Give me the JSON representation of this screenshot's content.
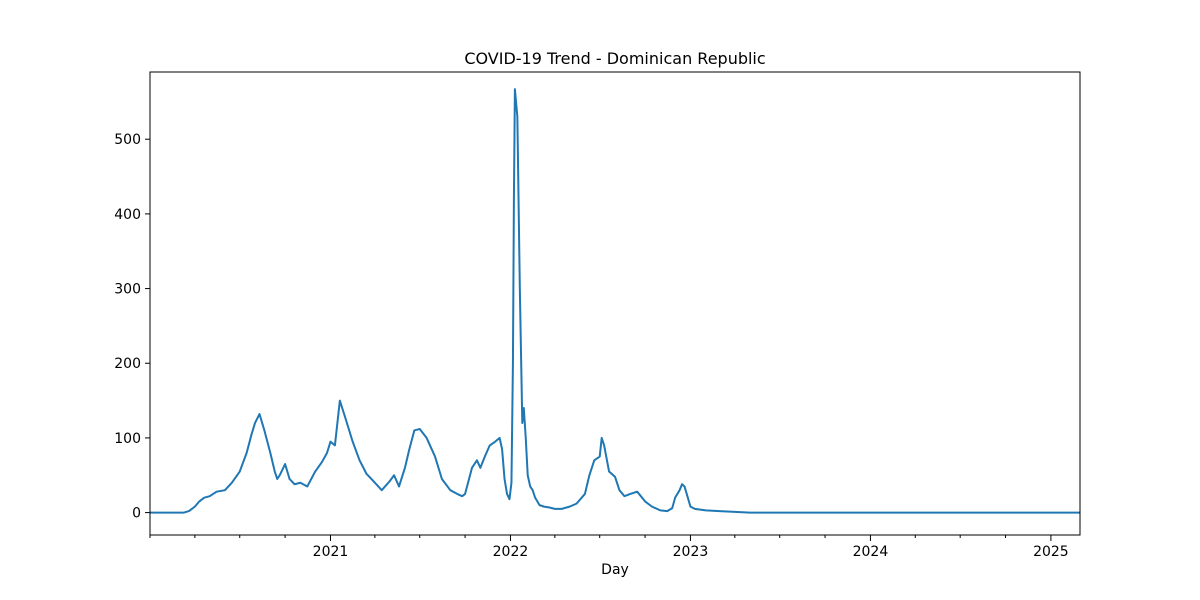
{
  "chart_data": {
    "type": "line",
    "title": "COVID-19 Trend - Dominican Republic",
    "xlabel": "Day",
    "ylabel": "",
    "x_type": "date",
    "xlim": [
      "2020-01-01",
      "2025-03-01"
    ],
    "ylim": [
      -30,
      590
    ],
    "yticks": [
      0,
      100,
      200,
      300,
      400,
      500
    ],
    "xticks_major": [
      {
        "date": "2021-01-01",
        "label": "2021"
      },
      {
        "date": "2022-01-01",
        "label": "2022"
      },
      {
        "date": "2023-01-01",
        "label": "2023"
      },
      {
        "date": "2024-01-01",
        "label": "2024"
      },
      {
        "date": "2025-01-01",
        "label": "2025"
      }
    ],
    "grid": false,
    "legend": "none",
    "line_color": "#1f77b4",
    "series": [
      {
        "x": [
          "2020-01-01",
          "2020-03-10",
          "2020-03-20",
          "2020-04-01",
          "2020-04-10",
          "2020-04-20",
          "2020-05-01",
          "2020-05-15",
          "2020-06-01",
          "2020-06-15",
          "2020-07-01",
          "2020-07-15",
          "2020-07-25",
          "2020-08-01",
          "2020-08-10",
          "2020-08-20",
          "2020-09-01",
          "2020-09-10",
          "2020-09-15",
          "2020-09-20",
          "2020-10-01",
          "2020-10-10",
          "2020-10-20",
          "2020-11-01",
          "2020-11-15",
          "2020-12-01",
          "2020-12-15",
          "2020-12-25",
          "2021-01-01",
          "2021-01-10",
          "2021-01-15",
          "2021-01-20",
          "2021-02-01",
          "2021-02-15",
          "2021-03-01",
          "2021-03-15",
          "2021-03-25",
          "2021-04-01",
          "2021-04-15",
          "2021-05-01",
          "2021-05-10",
          "2021-05-20",
          "2021-06-01",
          "2021-06-10",
          "2021-06-20",
          "2021-07-01",
          "2021-07-15",
          "2021-08-01",
          "2021-08-15",
          "2021-09-01",
          "2021-09-15",
          "2021-09-25",
          "2021-10-01",
          "2021-10-15",
          "2021-10-25",
          "2021-11-01",
          "2021-11-10",
          "2021-11-20",
          "2021-12-01",
          "2021-12-10",
          "2021-12-15",
          "2021-12-20",
          "2021-12-25",
          "2021-12-30",
          "2022-01-03",
          "2022-01-06",
          "2022-01-08",
          "2022-01-10",
          "2022-01-15",
          "2022-01-20",
          "2022-01-25",
          "2022-01-28",
          "2022-02-01",
          "2022-02-05",
          "2022-02-10",
          "2022-02-15",
          "2022-02-20",
          "2022-03-01",
          "2022-03-10",
          "2022-03-20",
          "2022-04-01",
          "2022-04-15",
          "2022-05-01",
          "2022-05-15",
          "2022-06-01",
          "2022-06-10",
          "2022-06-20",
          "2022-07-01",
          "2022-07-05",
          "2022-07-10",
          "2022-07-20",
          "2022-08-01",
          "2022-08-10",
          "2022-08-20",
          "2022-09-01",
          "2022-09-15",
          "2022-10-01",
          "2022-10-15",
          "2022-11-01",
          "2022-11-15",
          "2022-11-25",
          "2022-12-01",
          "2022-12-10",
          "2022-12-15",
          "2022-12-20",
          "2023-01-01",
          "2023-01-10",
          "2023-02-01",
          "2023-03-01",
          "2023-04-01",
          "2023-05-01",
          "2023-06-01",
          "2024-01-01",
          "2025-03-01"
        ],
        "y": [
          0,
          0,
          2,
          8,
          15,
          20,
          22,
          28,
          30,
          40,
          55,
          80,
          105,
          120,
          132,
          110,
          80,
          55,
          45,
          50,
          65,
          45,
          38,
          40,
          35,
          55,
          68,
          80,
          95,
          90,
          120,
          150,
          125,
          95,
          70,
          52,
          45,
          40,
          30,
          42,
          50,
          35,
          60,
          85,
          110,
          112,
          100,
          75,
          45,
          30,
          25,
          22,
          25,
          60,
          70,
          60,
          75,
          90,
          95,
          100,
          85,
          45,
          25,
          18,
          40,
          200,
          420,
          567,
          530,
          300,
          120,
          140,
          100,
          50,
          35,
          30,
          20,
          10,
          8,
          7,
          5,
          5,
          8,
          12,
          25,
          50,
          70,
          75,
          100,
          90,
          55,
          48,
          30,
          22,
          25,
          28,
          15,
          8,
          3,
          2,
          6,
          20,
          30,
          38,
          35,
          8,
          5,
          3,
          2,
          1,
          0,
          0,
          0,
          0
        ]
      }
    ]
  }
}
